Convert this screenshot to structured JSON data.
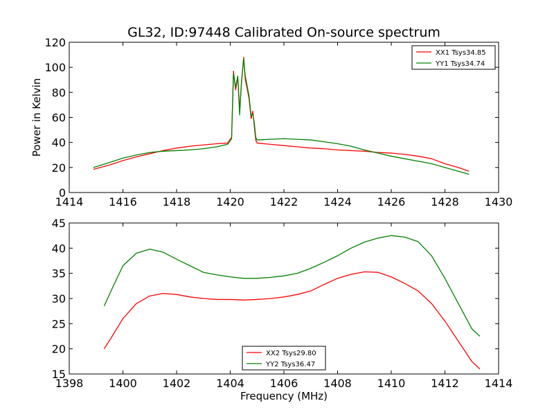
{
  "title": "GL32, ID:97448 Calibrated On-source spectrum",
  "chart_data": [
    {
      "type": "line",
      "xlabel": "",
      "ylabel": "Power in Kelvin",
      "xlim": [
        1414,
        1430
      ],
      "ylim": [
        0,
        120
      ],
      "xticks": [
        "1414",
        "1416",
        "1418",
        "1420",
        "1422",
        "1424",
        "1426",
        "1428",
        "1430"
      ],
      "yticks": [
        "0",
        "20",
        "40",
        "60",
        "80",
        "100",
        "120"
      ],
      "legend": "top-right",
      "grid": false,
      "series": [
        {
          "name": "XX1 Tsys34.85",
          "color": "#ff0000",
          "points": [
            [
              1414.9,
              18.5
            ],
            [
              1415.5,
              22
            ],
            [
              1416,
              25.5
            ],
            [
              1416.5,
              28.5
            ],
            [
              1417,
              31
            ],
            [
              1417.5,
              33.5
            ],
            [
              1418,
              35.5
            ],
            [
              1418.5,
              37
            ],
            [
              1419,
              38
            ],
            [
              1419.5,
              39
            ],
            [
              1419.9,
              39.5
            ],
            [
              1420.05,
              44
            ],
            [
              1420.12,
              97
            ],
            [
              1420.2,
              82
            ],
            [
              1420.28,
              92
            ],
            [
              1420.35,
              66
            ],
            [
              1420.42,
              88
            ],
            [
              1420.5,
              108
            ],
            [
              1420.56,
              90
            ],
            [
              1420.63,
              83
            ],
            [
              1420.7,
              75
            ],
            [
              1420.78,
              59
            ],
            [
              1420.84,
              65
            ],
            [
              1420.9,
              52
            ],
            [
              1420.95,
              42
            ],
            [
              1421,
              39.5
            ],
            [
              1421.5,
              38.5
            ],
            [
              1422,
              37.5
            ],
            [
              1422.5,
              36.5
            ],
            [
              1423,
              35.5
            ],
            [
              1423.5,
              35
            ],
            [
              1424,
              34
            ],
            [
              1424.5,
              33.5
            ],
            [
              1425,
              33
            ],
            [
              1425.5,
              32
            ],
            [
              1426,
              31.5
            ],
            [
              1426.5,
              30.5
            ],
            [
              1427,
              29
            ],
            [
              1427.5,
              27
            ],
            [
              1428,
              23
            ],
            [
              1428.5,
              20
            ],
            [
              1428.9,
              17
            ]
          ]
        },
        {
          "name": "YY1 Tsys34.74",
          "color": "#008000",
          "points": [
            [
              1414.9,
              20
            ],
            [
              1415.5,
              24
            ],
            [
              1416,
              27.5
            ],
            [
              1416.5,
              30
            ],
            [
              1417,
              32
            ],
            [
              1417.5,
              33
            ],
            [
              1418,
              33.5
            ],
            [
              1418.5,
              34
            ],
            [
              1419,
              35
            ],
            [
              1419.5,
              36.5
            ],
            [
              1419.9,
              38.5
            ],
            [
              1420.05,
              43
            ],
            [
              1420.12,
              95
            ],
            [
              1420.2,
              84
            ],
            [
              1420.28,
              93
            ],
            [
              1420.35,
              62
            ],
            [
              1420.42,
              89
            ],
            [
              1420.5,
              107
            ],
            [
              1420.56,
              93
            ],
            [
              1420.63,
              85
            ],
            [
              1420.7,
              77
            ],
            [
              1420.78,
              61
            ],
            [
              1420.84,
              63
            ],
            [
              1420.9,
              55
            ],
            [
              1420.95,
              44
            ],
            [
              1421,
              42
            ],
            [
              1421.5,
              42.5
            ],
            [
              1422,
              43
            ],
            [
              1422.5,
              42.5
            ],
            [
              1423,
              42
            ],
            [
              1423.5,
              40.5
            ],
            [
              1424,
              39
            ],
            [
              1424.5,
              37
            ],
            [
              1425,
              34
            ],
            [
              1425.5,
              31.5
            ],
            [
              1426,
              29
            ],
            [
              1426.5,
              27
            ],
            [
              1427,
              25
            ],
            [
              1427.5,
              23
            ],
            [
              1428,
              20
            ],
            [
              1428.5,
              17
            ],
            [
              1428.9,
              14.5
            ]
          ]
        }
      ]
    },
    {
      "type": "line",
      "xlabel": "Frequency (MHz)",
      "ylabel": "",
      "xlim": [
        1398,
        1414
      ],
      "ylim": [
        15,
        45
      ],
      "xticks": [
        "1398",
        "1400",
        "1402",
        "1404",
        "1406",
        "1408",
        "1410",
        "1412",
        "1414"
      ],
      "yticks": [
        "15",
        "20",
        "25",
        "30",
        "35",
        "40",
        "45"
      ],
      "legend": "lower-center",
      "grid": false,
      "series": [
        {
          "name": "XX2 Tsys29.80",
          "color": "#ff0000",
          "points": [
            [
              1399.3,
              20
            ],
            [
              1399.6,
              22.5
            ],
            [
              1400,
              26
            ],
            [
              1400.5,
              29
            ],
            [
              1401,
              30.5
            ],
            [
              1401.5,
              31
            ],
            [
              1402,
              30.8
            ],
            [
              1402.5,
              30.3
            ],
            [
              1403,
              30
            ],
            [
              1403.5,
              29.8
            ],
            [
              1404,
              29.8
            ],
            [
              1404.5,
              29.7
            ],
            [
              1405,
              29.8
            ],
            [
              1405.5,
              30
            ],
            [
              1406,
              30.3
            ],
            [
              1406.5,
              30.8
            ],
            [
              1407,
              31.5
            ],
            [
              1407.5,
              32.8
            ],
            [
              1408,
              34
            ],
            [
              1408.5,
              34.8
            ],
            [
              1409,
              35.3
            ],
            [
              1409.5,
              35.2
            ],
            [
              1410,
              34.3
            ],
            [
              1410.5,
              33
            ],
            [
              1411,
              31.5
            ],
            [
              1411.5,
              29
            ],
            [
              1412,
              25.5
            ],
            [
              1412.5,
              21.5
            ],
            [
              1413,
              17.5
            ],
            [
              1413.3,
              16
            ]
          ]
        },
        {
          "name": "YY2 Tsys36.47",
          "color": "#008000",
          "points": [
            [
              1399.3,
              28.5
            ],
            [
              1399.6,
              32
            ],
            [
              1400,
              36.5
            ],
            [
              1400.5,
              39
            ],
            [
              1401,
              39.8
            ],
            [
              1401.5,
              39.2
            ],
            [
              1402,
              37.8
            ],
            [
              1402.5,
              36.5
            ],
            [
              1403,
              35.2
            ],
            [
              1403.5,
              34.7
            ],
            [
              1404,
              34.3
            ],
            [
              1404.5,
              34
            ],
            [
              1405,
              34
            ],
            [
              1405.5,
              34.2
            ],
            [
              1406,
              34.5
            ],
            [
              1406.5,
              35
            ],
            [
              1407,
              36
            ],
            [
              1407.5,
              37.2
            ],
            [
              1408,
              38.5
            ],
            [
              1408.5,
              40
            ],
            [
              1409,
              41.2
            ],
            [
              1409.5,
              42
            ],
            [
              1410,
              42.5
            ],
            [
              1410.5,
              42.2
            ],
            [
              1411,
              41.3
            ],
            [
              1411.5,
              38.5
            ],
            [
              1412,
              34
            ],
            [
              1412.5,
              29
            ],
            [
              1413,
              24
            ],
            [
              1413.3,
              22.5
            ]
          ]
        }
      ]
    }
  ]
}
